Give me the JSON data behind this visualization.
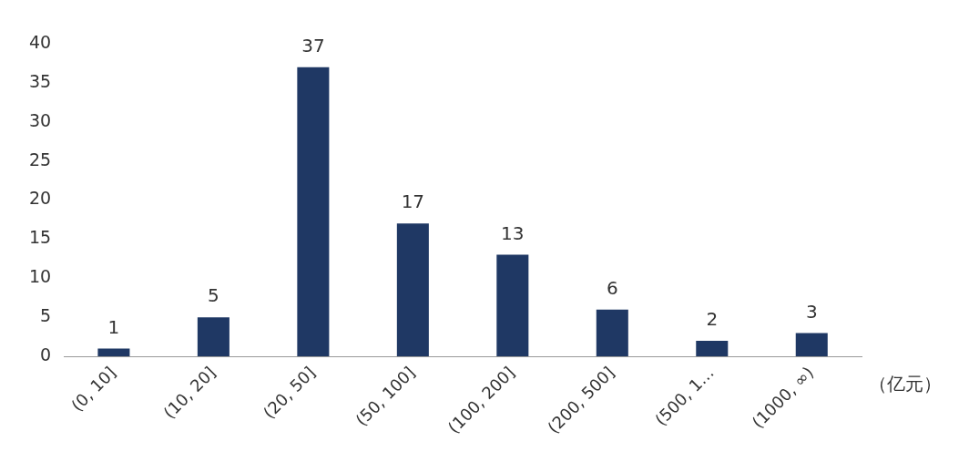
{
  "chart_data": {
    "type": "bar",
    "xlabel": "（亿元）",
    "categories": [
      "(0, 10]",
      "(10, 20]",
      "(20, 50]",
      "(50, 100]",
      "(100, 200]",
      "(200, 500]",
      "(500, 1…",
      "(1000, ∞)"
    ],
    "values": [
      1,
      5,
      37,
      17,
      13,
      6,
      2,
      3
    ],
    "color": "#1f3864",
    "ylim": [
      0,
      40
    ],
    "yticks": [
      0,
      5,
      10,
      15,
      20,
      25,
      30,
      35,
      40
    ],
    "grid": false,
    "legend": false,
    "data_labels": true
  }
}
